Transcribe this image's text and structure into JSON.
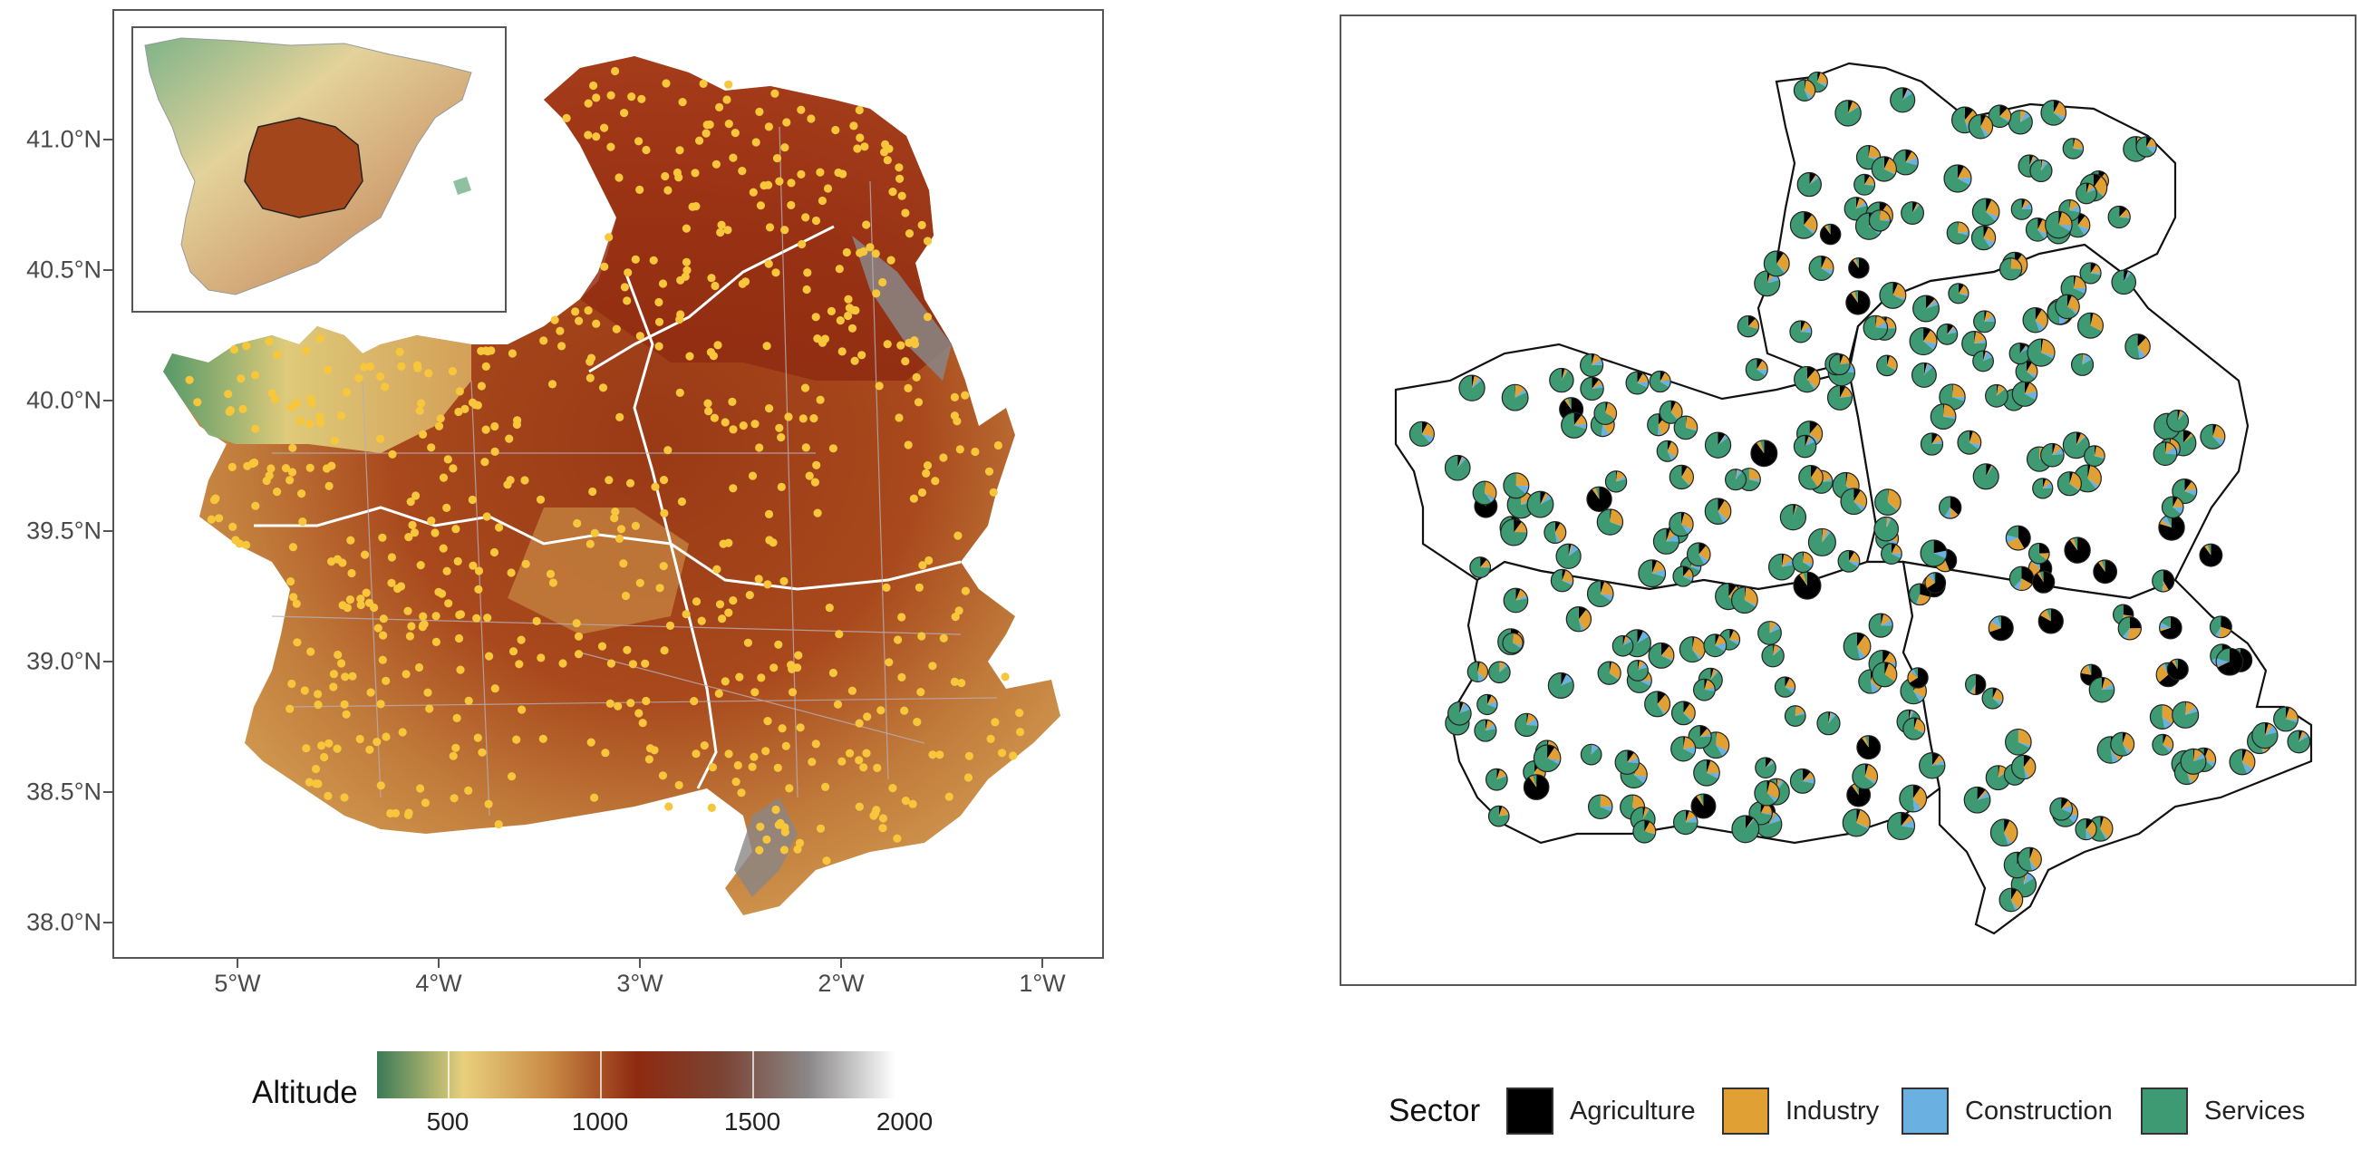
{
  "left_map": {
    "y_ticks": [
      {
        "label": "41.0°N",
        "lat": 41.0
      },
      {
        "label": "40.5°N",
        "lat": 40.5
      },
      {
        "label": "40.0°N",
        "lat": 40.0
      },
      {
        "label": "39.5°N",
        "lat": 39.5
      },
      {
        "label": "39.0°N",
        "lat": 39.0
      },
      {
        "label": "38.5°N",
        "lat": 38.5
      },
      {
        "label": "38.0°N",
        "lat": 38.0
      }
    ],
    "x_ticks": [
      {
        "label": "5°W",
        "lon": -5
      },
      {
        "label": "4°W",
        "lon": -4
      },
      {
        "label": "3°W",
        "lon": -3
      },
      {
        "label": "2°W",
        "lon": -2
      },
      {
        "label": "1°W",
        "lon": -1
      }
    ],
    "point_color": "#f7c63b"
  },
  "altitude_legend": {
    "title": "Altitude",
    "ticks": [
      "500",
      "1000",
      "1500",
      "2000"
    ],
    "colors": [
      "#3b7a57",
      "#e8d07c",
      "#c98a45",
      "#8e2a10",
      "#7a4434",
      "#8a8888",
      "#ffffff"
    ]
  },
  "sector_legend": {
    "title": "Sector",
    "items": [
      {
        "label": "Agriculture",
        "color": "#000000"
      },
      {
        "label": "Industry",
        "color": "#e0a033"
      },
      {
        "label": "Construction",
        "color": "#6ab0e0"
      },
      {
        "label": "Services",
        "color": "#3d9a73"
      }
    ]
  }
}
